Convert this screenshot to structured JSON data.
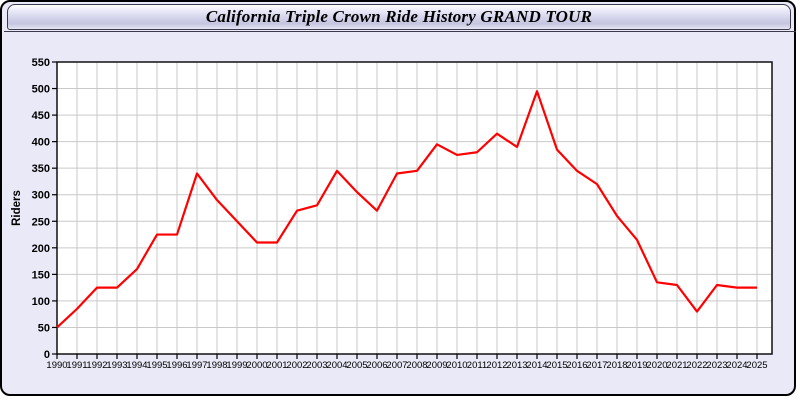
{
  "title": "California Triple Crown Ride History GRAND TOUR",
  "chart_data": {
    "type": "line",
    "x": [
      1990,
      1991,
      1992,
      1993,
      1994,
      1995,
      1996,
      1997,
      1998,
      1999,
      2000,
      2001,
      2002,
      2003,
      2004,
      2005,
      2006,
      2007,
      2008,
      2009,
      2010,
      2011,
      2012,
      2013,
      2014,
      2015,
      2016,
      2017,
      2018,
      2019,
      2020,
      2021,
      2022,
      2023,
      2024,
      2025
    ],
    "series": [
      {
        "name": "Riders",
        "values": [
          50,
          85,
          125,
          125,
          160,
          225,
          225,
          340,
          290,
          250,
          210,
          210,
          270,
          280,
          345,
          305,
          270,
          340,
          345,
          395,
          375,
          380,
          415,
          390,
          495,
          385,
          345,
          320,
          260,
          215,
          135,
          130,
          80,
          130,
          125,
          125
        ],
        "color": "#ff0000"
      }
    ],
    "xlabel": "",
    "ylabel": "Riders",
    "ylim": [
      0,
      550
    ],
    "ytick_step": 50,
    "grid": true,
    "legend": false
  },
  "colors": {
    "page_background": "#e9e9f8",
    "plot_background": "#ffffff",
    "grid_line": "#c9c9c9",
    "axis": "#000000",
    "line": "#ff0000"
  }
}
